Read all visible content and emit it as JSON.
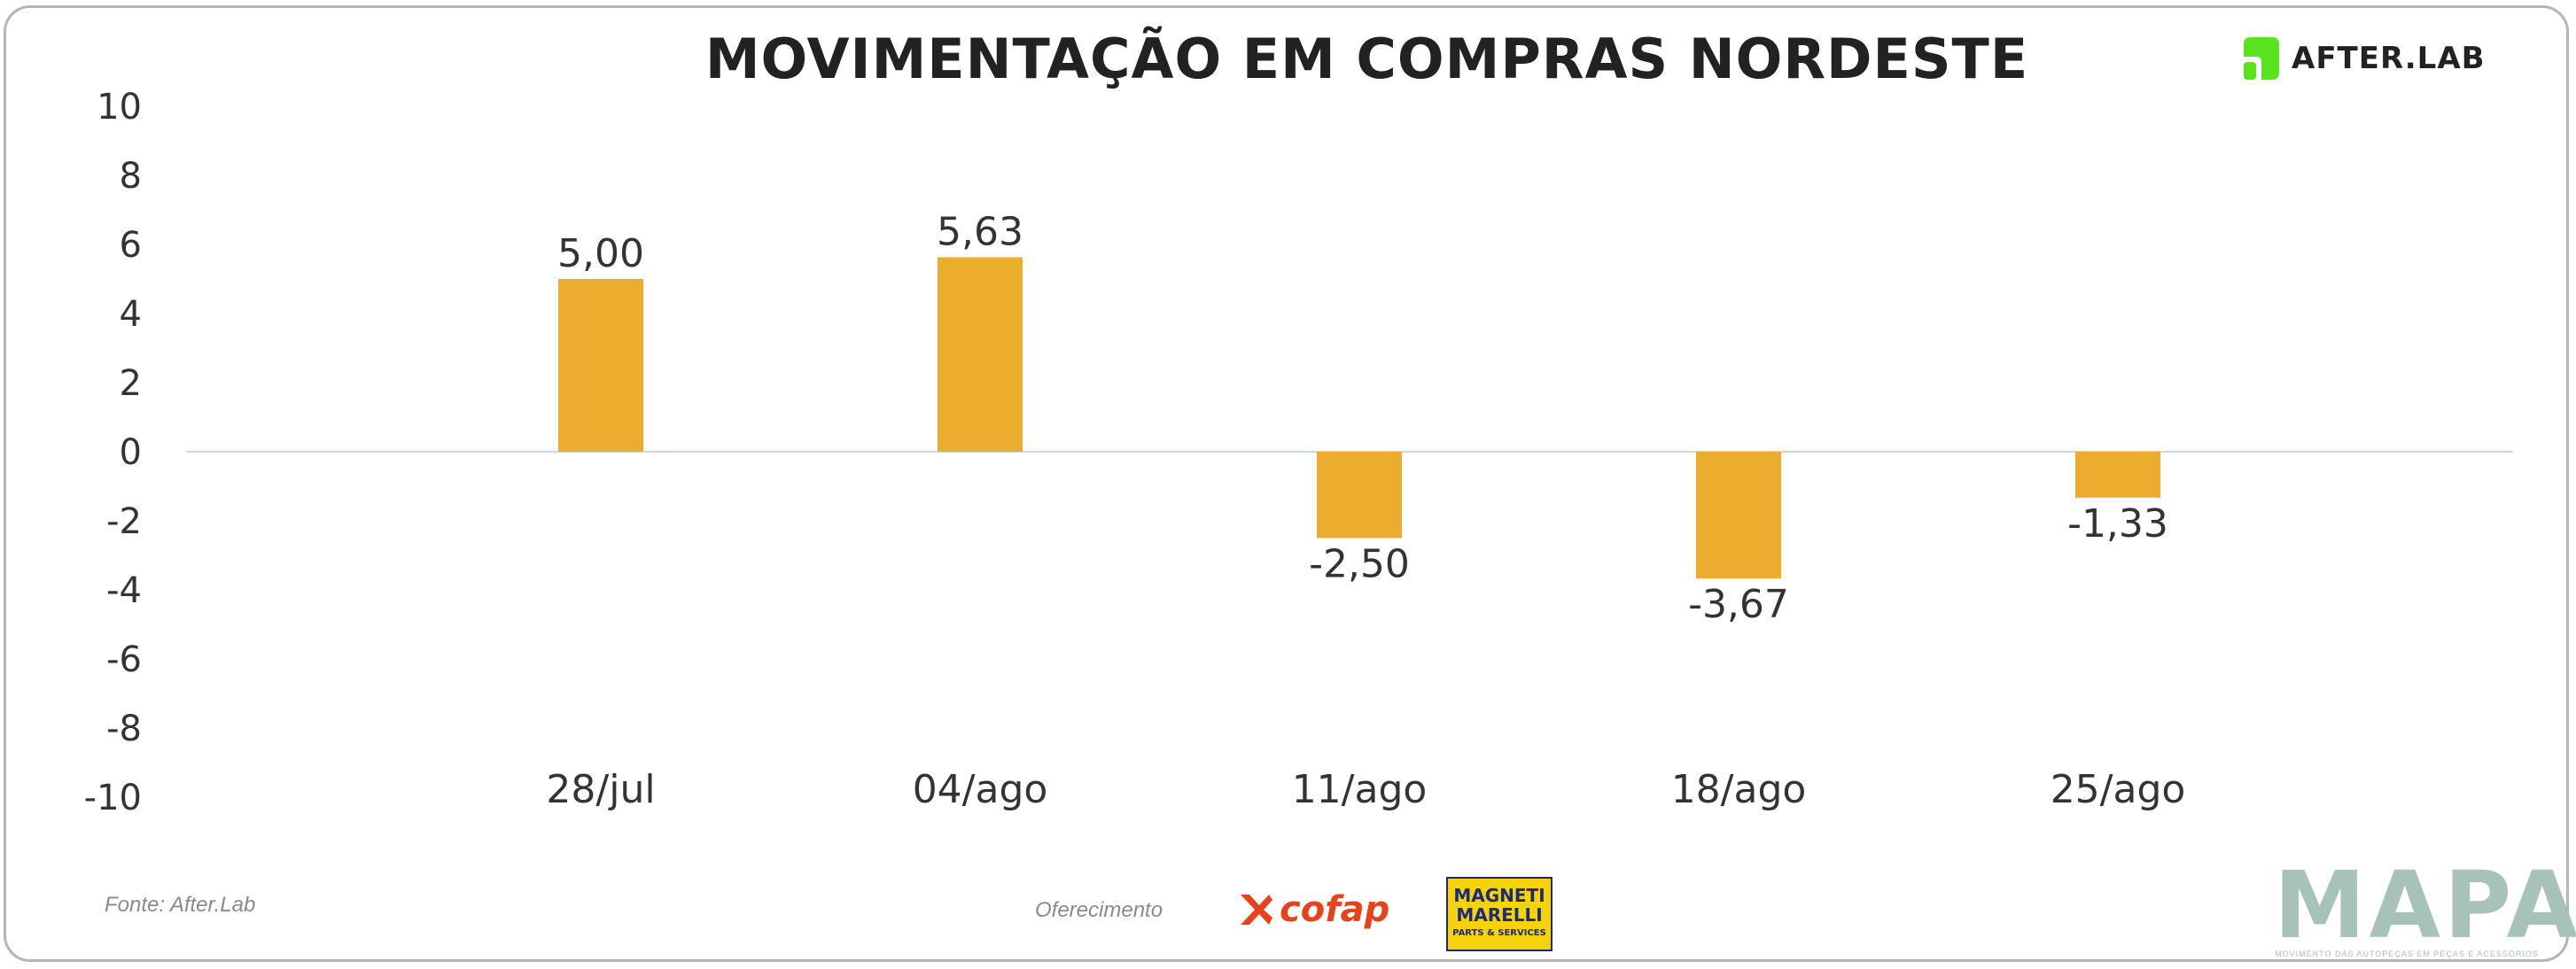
{
  "header": {
    "title": "MOVIMENTAÇÃO EM COMPRAS NORDESTE",
    "brand": "AFTER.LAB"
  },
  "footer": {
    "source": "Fonte: After.Lab",
    "sponsor_label": "Oferecimento",
    "sponsor_1": "cofap",
    "sponsor_2_line1": "MAGNETI",
    "sponsor_2_line2": "MARELLI",
    "sponsor_2_tagline": "PARTS & SERVICES",
    "mapa": "MAPA",
    "mapa_tagline": "MOVIMENTO DAS AUTOPEÇAS EM PEÇAS E ACESSÓRIOS"
  },
  "colors": {
    "bar": "#ecac2d",
    "zero_line": "#c9dcd6",
    "text": "#333333",
    "brand_green": "#59e31c"
  },
  "chart_data": {
    "type": "bar",
    "title": "MOVIMENTAÇÃO EM COMPRAS NORDESTE",
    "xlabel": "",
    "ylabel": "",
    "categories": [
      "28/jul",
      "04/ago",
      "11/ago",
      "18/ago",
      "25/ago"
    ],
    "values": [
      5.0,
      5.63,
      -2.5,
      -3.67,
      -1.33
    ],
    "value_labels": [
      "5,00",
      "5,63",
      "-2,50",
      "-3,67",
      "-1,33"
    ],
    "ylim": [
      -10,
      10
    ],
    "yticks": [
      10,
      8,
      6,
      4,
      2,
      0,
      -2,
      -4,
      -6,
      -8,
      -10
    ],
    "grid": false,
    "legend": "none"
  }
}
